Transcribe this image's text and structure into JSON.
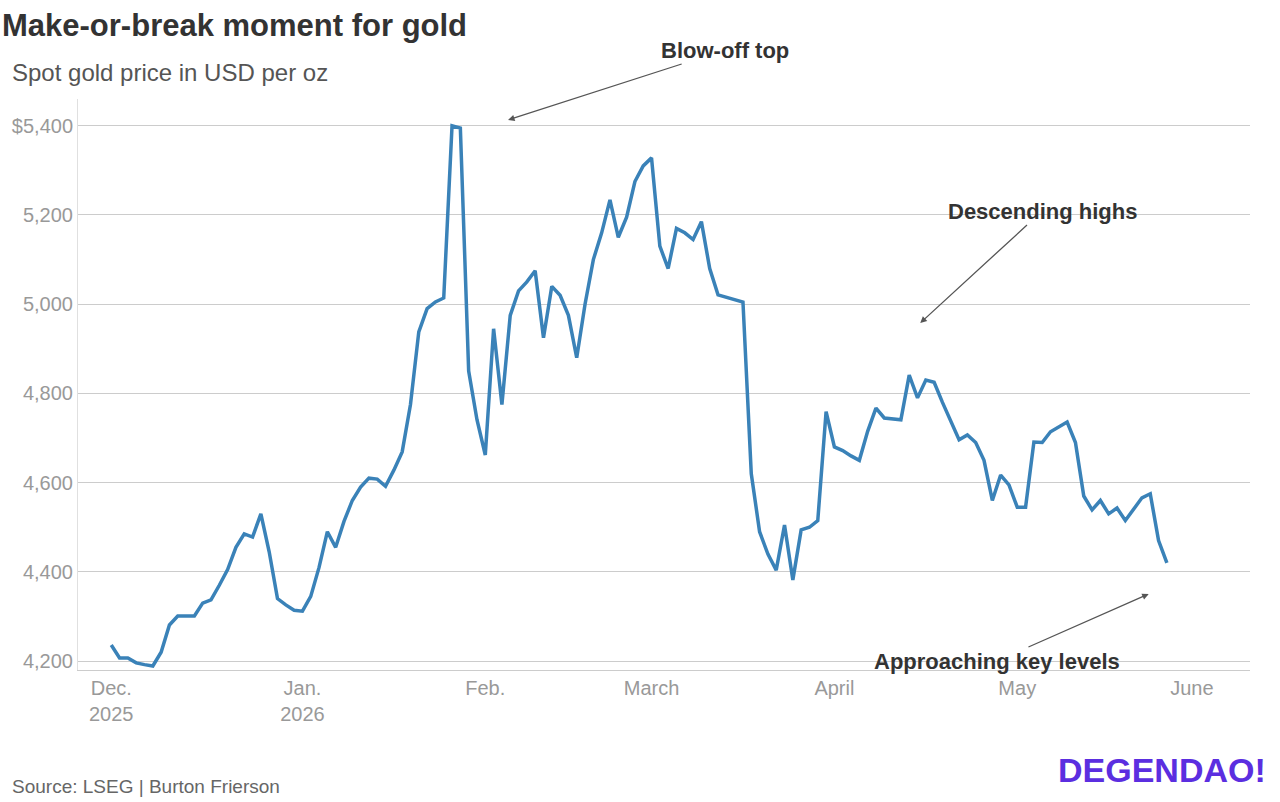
{
  "chart_data": {
    "type": "line",
    "title": "Make-or-break moment for gold",
    "subtitle": "Spot gold price in USD per oz",
    "source": "Source: LSEG | Burton Frierson",
    "annotations": [
      "Blow-off top",
      "Descending highs",
      "Approaching key levels",
      "DEGENDAO!"
    ],
    "color": "#3a82b8",
    "grid": true,
    "ylim": [
      4180,
      5460
    ],
    "yticks": [
      {
        "value": 4200,
        "label": "4,200"
      },
      {
        "value": 4400,
        "label": "4,400"
      },
      {
        "value": 4600,
        "label": "4,600"
      },
      {
        "value": 4800,
        "label": "4,800"
      },
      {
        "value": 5000,
        "label": "5,000"
      },
      {
        "value": 5200,
        "label": "5,200"
      },
      {
        "value": 5400,
        "label": "$5,400"
      }
    ],
    "categories": [
      "Dec.\n2025",
      null,
      null,
      null,
      null,
      null,
      null,
      null,
      null,
      null,
      null,
      null,
      null,
      null,
      null,
      null,
      null,
      null,
      null,
      null,
      null,
      null,
      null,
      "Jan.\n2026",
      null,
      null,
      null,
      null,
      null,
      null,
      null,
      null,
      null,
      null,
      null,
      null,
      null,
      null,
      null,
      null,
      null,
      null,
      null,
      null,
      null,
      "Feb.",
      null,
      null,
      null,
      null,
      null,
      null,
      null,
      null,
      null,
      null,
      null,
      null,
      null,
      null,
      null,
      null,
      null,
      null,
      null,
      "March",
      null,
      null,
      null,
      null,
      null,
      null,
      null,
      null,
      null,
      null,
      null,
      null,
      null,
      null,
      null,
      null,
      null,
      null,
      null,
      null,
      null,
      "April",
      null,
      null,
      null,
      null,
      null,
      null,
      null,
      null,
      null,
      null,
      null,
      null,
      null,
      null,
      null,
      null,
      null,
      null,
      null,
      null,
      null,
      "May",
      null,
      null,
      null,
      null,
      null,
      null,
      null,
      null,
      null,
      null,
      null,
      null,
      null,
      null,
      null,
      null,
      null,
      null,
      null,
      null,
      "June"
    ],
    "values": [
      4236,
      4207,
      4207,
      4196,
      4192,
      4189,
      4220,
      4281,
      4301,
      4301,
      4301,
      4330,
      4337,
      4370,
      4405,
      4455,
      4485,
      4478,
      4530,
      4445,
      4340,
      4326,
      4314,
      4312,
      4345,
      4410,
      4490,
      4455,
      4513,
      4560,
      4590,
      4610,
      4608,
      4592,
      4628,
      4669,
      4775,
      4938,
      4990,
      5005,
      5014,
      5400,
      5395,
      4850,
      4741,
      4662,
      4945,
      4775,
      4975,
      5030,
      5050,
      5075,
      4925,
      5040,
      5020,
      4975,
      4880,
      5000,
      5100,
      5160,
      5234,
      5150,
      5195,
      5275,
      5310,
      5328,
      5130,
      5080,
      5170,
      5160,
      5145,
      5185,
      5080,
      5021,
      5015,
      5010,
      5005,
      4620,
      4490,
      4440,
      4404,
      4505,
      4382,
      4494,
      4500,
      4515,
      4759,
      4680,
      4672,
      4660,
      4650,
      4715,
      4767,
      4745,
      4743,
      4741,
      4841,
      4790,
      4830,
      4825,
      4780,
      4736,
      4696,
      4707,
      4690,
      4650,
      4560,
      4617,
      4595,
      4545,
      4545,
      4691,
      4690,
      4714,
      4725,
      4736,
      4690,
      4570,
      4539,
      4560,
      4530,
      4543,
      4515,
      4540,
      4566,
      4575,
      4470,
      4420,
      null,
      null,
      null
    ]
  }
}
